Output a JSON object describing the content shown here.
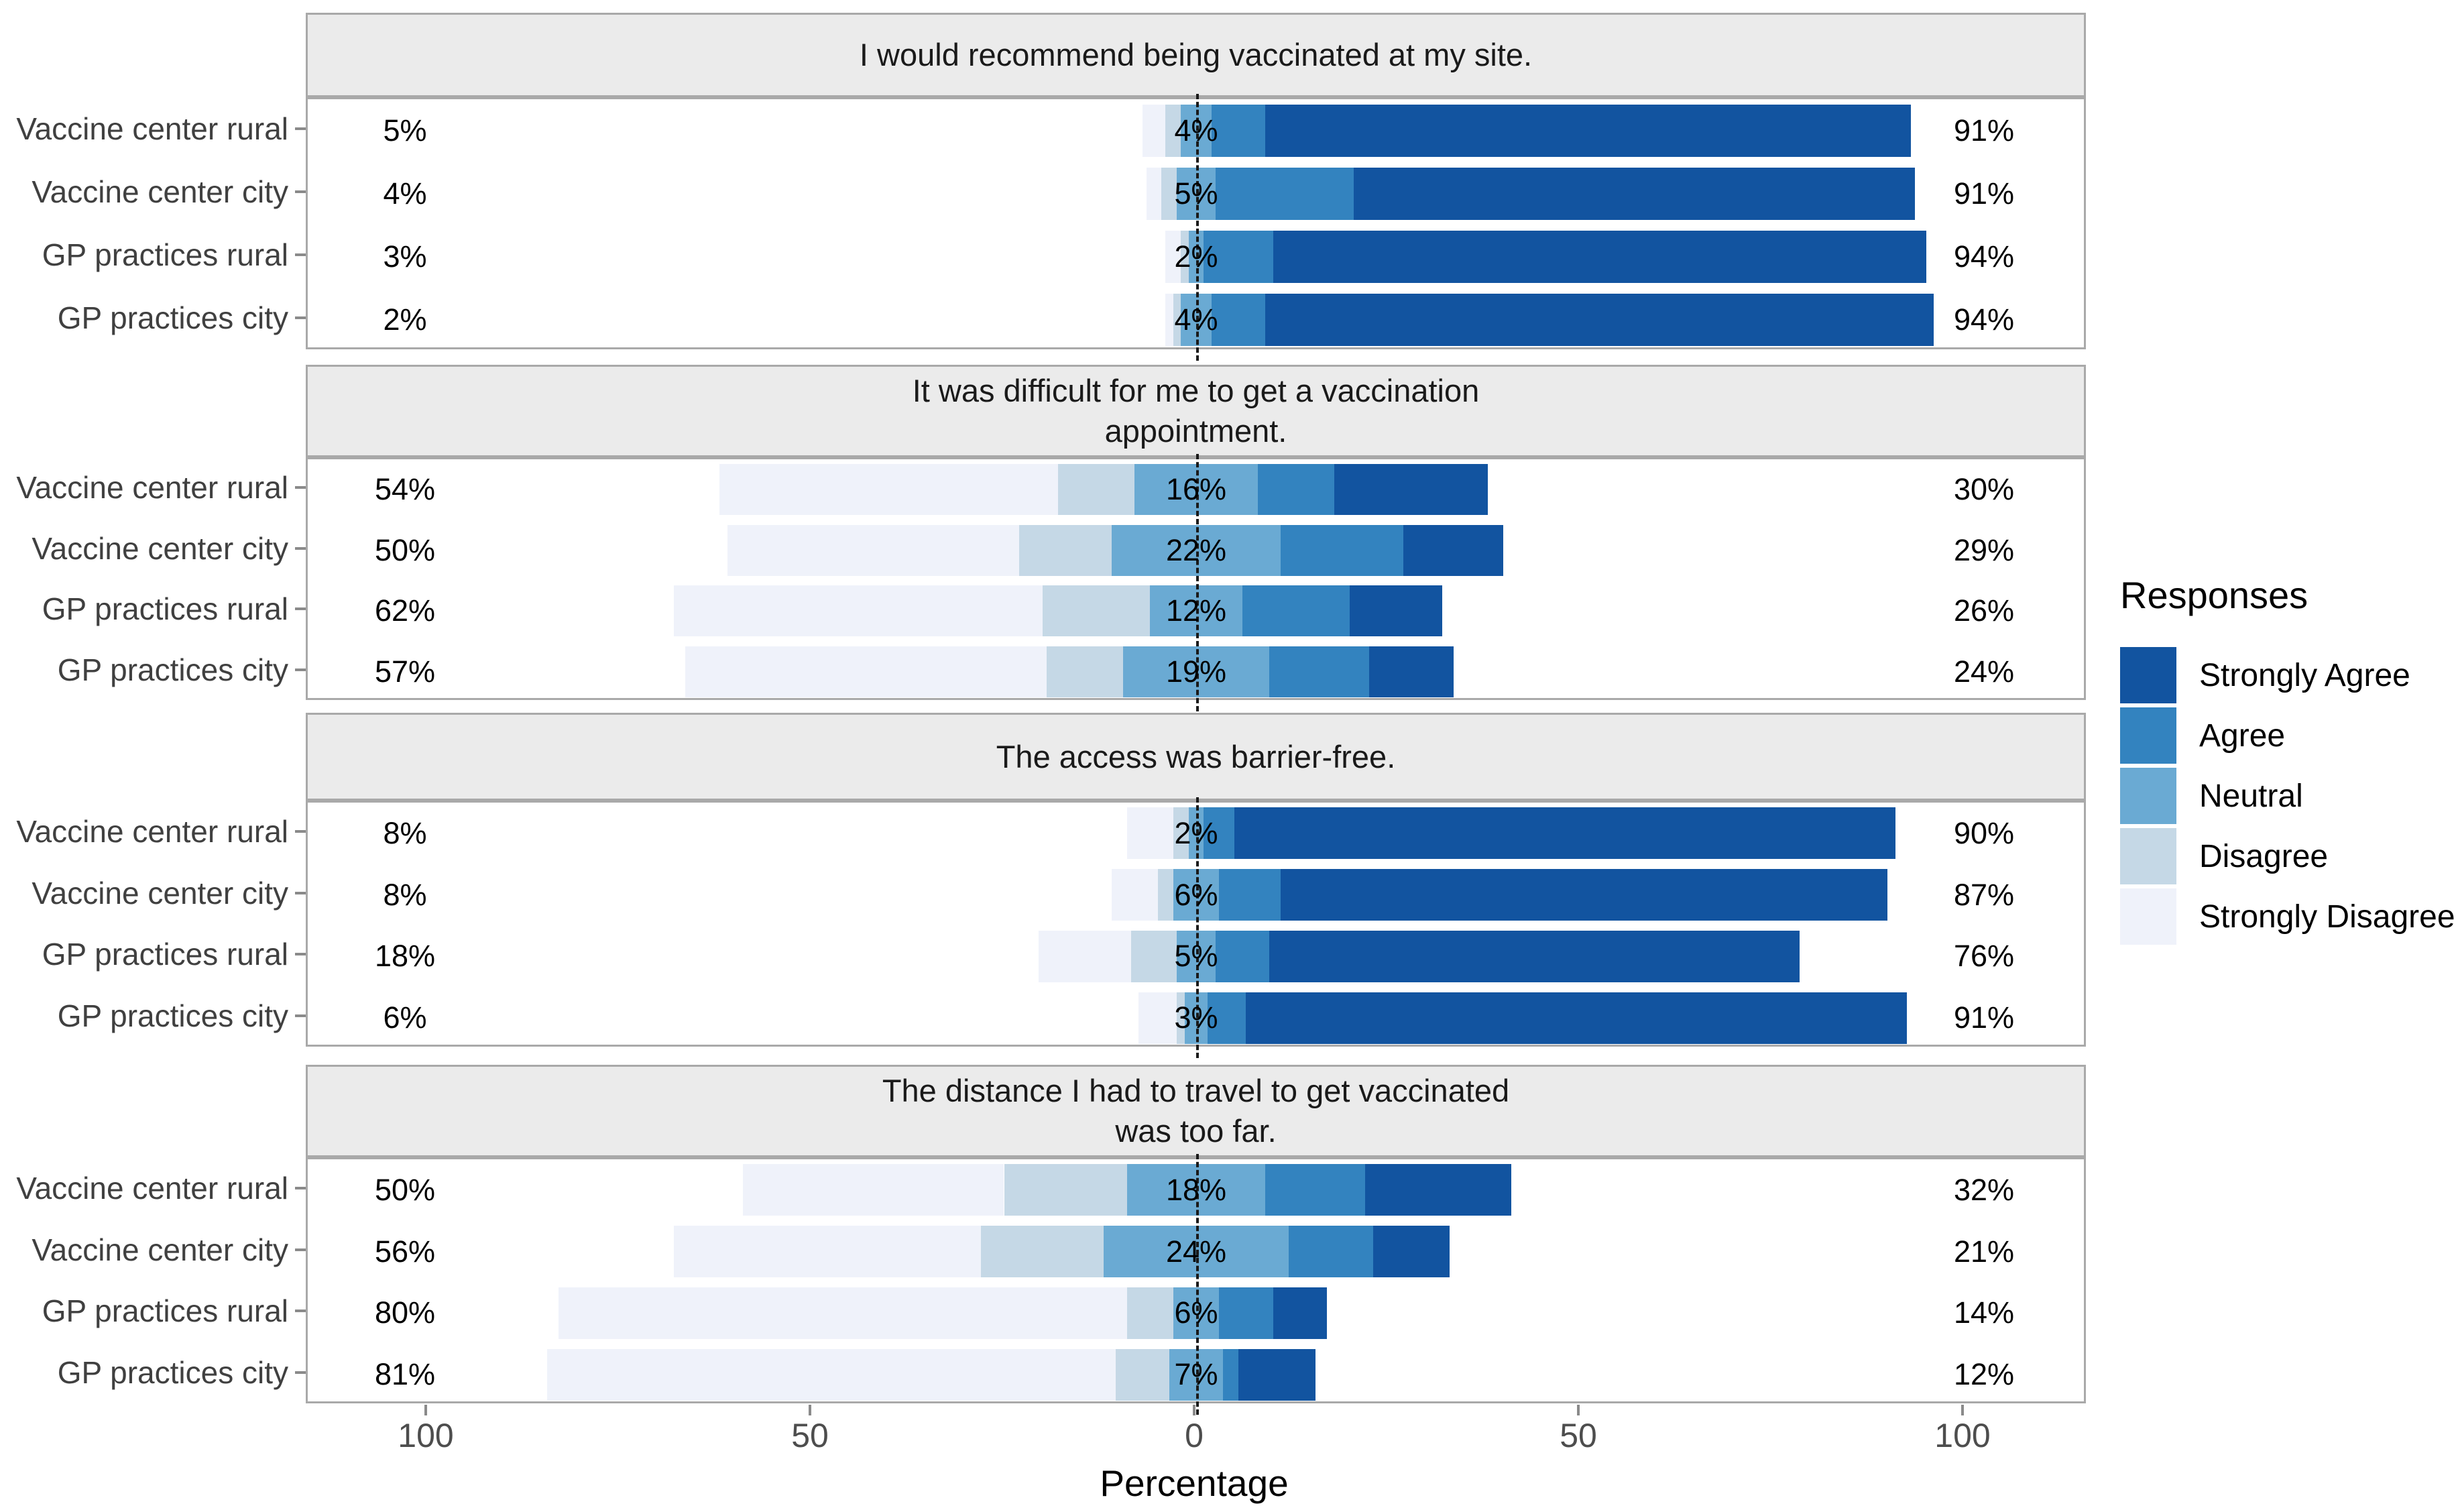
{
  "chart_data": {
    "type": "bar",
    "subtype": "diverging-stacked-likert",
    "axis": {
      "label": "Percentage",
      "ticks": [
        -100,
        -50,
        0,
        50,
        100
      ],
      "tick_labels": [
        "100",
        "50",
        "0",
        "50",
        "100"
      ],
      "domain": [
        -116,
        116
      ]
    },
    "legend": {
      "title": "Responses",
      "items": [
        {
          "key": "strongly_agree",
          "label": "Strongly Agree",
          "color": "#1254a0"
        },
        {
          "key": "agree",
          "label": "Agree",
          "color": "#3383bf"
        },
        {
          "key": "neutral",
          "label": "Neutral",
          "color": "#6aaad3"
        },
        {
          "key": "disagree",
          "label": "Disagree",
          "color": "#c5d8e6"
        },
        {
          "key": "strongly_disagree",
          "label": "Strongly Disagree",
          "color": "#eff2fa"
        }
      ]
    },
    "stack_order": [
      "strongly_disagree",
      "disagree",
      "neutral",
      "agree",
      "strongly_agree"
    ],
    "panels": [
      {
        "title_lines": [
          "I would recommend being vaccinated at my site."
        ],
        "rows": [
          {
            "category": "Vaccine center rural",
            "left_label": "5%",
            "neutral_label": "4%",
            "right_label": "91%",
            "segments": {
              "strongly_disagree": 3,
              "disagree": 2,
              "neutral": 4,
              "agree": 7,
              "strongly_agree": 84
            }
          },
          {
            "category": "Vaccine center city",
            "left_label": "4%",
            "neutral_label": "5%",
            "right_label": "91%",
            "segments": {
              "strongly_disagree": 2,
              "disagree": 2,
              "neutral": 5,
              "agree": 18,
              "strongly_agree": 73
            }
          },
          {
            "category": "GP practices rural",
            "left_label": "3%",
            "neutral_label": "2%",
            "right_label": "94%",
            "segments": {
              "strongly_disagree": 2,
              "disagree": 1,
              "neutral": 2,
              "agree": 9,
              "strongly_agree": 85
            }
          },
          {
            "category": "GP practices city",
            "left_label": "2%",
            "neutral_label": "4%",
            "right_label": "94%",
            "segments": {
              "strongly_disagree": 1,
              "disagree": 1,
              "neutral": 4,
              "agree": 7,
              "strongly_agree": 87
            }
          }
        ]
      },
      {
        "title_lines": [
          "It was difficult for me to get a vaccination",
          "appointment."
        ],
        "rows": [
          {
            "category": "Vaccine center rural",
            "left_label": "54%",
            "neutral_label": "16%",
            "right_label": "30%",
            "segments": {
              "strongly_disagree": 44,
              "disagree": 10,
              "neutral": 16,
              "agree": 10,
              "strongly_agree": 20
            }
          },
          {
            "category": "Vaccine center city",
            "left_label": "50%",
            "neutral_label": "22%",
            "right_label": "29%",
            "segments": {
              "strongly_disagree": 38,
              "disagree": 12,
              "neutral": 22,
              "agree": 16,
              "strongly_agree": 13
            }
          },
          {
            "category": "GP practices rural",
            "left_label": "62%",
            "neutral_label": "12%",
            "right_label": "26%",
            "segments": {
              "strongly_disagree": 48,
              "disagree": 14,
              "neutral": 12,
              "agree": 14,
              "strongly_agree": 12
            }
          },
          {
            "category": "GP practices city",
            "left_label": "57%",
            "neutral_label": "19%",
            "right_label": "24%",
            "segments": {
              "strongly_disagree": 47,
              "disagree": 10,
              "neutral": 19,
              "agree": 13,
              "strongly_agree": 11
            }
          }
        ]
      },
      {
        "title_lines": [
          "The access was barrier-free."
        ],
        "rows": [
          {
            "category": "Vaccine center rural",
            "left_label": "8%",
            "neutral_label": "2%",
            "right_label": "90%",
            "segments": {
              "strongly_disagree": 6,
              "disagree": 2,
              "neutral": 2,
              "agree": 4,
              "strongly_agree": 86
            }
          },
          {
            "category": "Vaccine center city",
            "left_label": "8%",
            "neutral_label": "6%",
            "right_label": "87%",
            "segments": {
              "strongly_disagree": 6,
              "disagree": 2,
              "neutral": 6,
              "agree": 8,
              "strongly_agree": 79
            }
          },
          {
            "category": "GP practices rural",
            "left_label": "18%",
            "neutral_label": "5%",
            "right_label": "76%",
            "segments": {
              "strongly_disagree": 12,
              "disagree": 6,
              "neutral": 5,
              "agree": 7,
              "strongly_agree": 69
            }
          },
          {
            "category": "GP practices city",
            "left_label": "6%",
            "neutral_label": "3%",
            "right_label": "91%",
            "segments": {
              "strongly_disagree": 5,
              "disagree": 1,
              "neutral": 3,
              "agree": 5,
              "strongly_agree": 86
            }
          }
        ]
      },
      {
        "title_lines": [
          "The distance I had to travel to get vaccinated",
          "was too far."
        ],
        "rows": [
          {
            "category": "Vaccine center rural",
            "left_label": "50%",
            "neutral_label": "18%",
            "right_label": "32%",
            "segments": {
              "strongly_disagree": 34,
              "disagree": 16,
              "neutral": 18,
              "agree": 13,
              "strongly_agree": 19
            }
          },
          {
            "category": "Vaccine center city",
            "left_label": "56%",
            "neutral_label": "24%",
            "right_label": "21%",
            "segments": {
              "strongly_disagree": 40,
              "disagree": 16,
              "neutral": 24,
              "agree": 11,
              "strongly_agree": 10
            }
          },
          {
            "category": "GP practices rural",
            "left_label": "80%",
            "neutral_label": "6%",
            "right_label": "14%",
            "segments": {
              "strongly_disagree": 74,
              "disagree": 6,
              "neutral": 6,
              "agree": 7,
              "strongly_agree": 7
            }
          },
          {
            "category": "GP practices city",
            "left_label": "81%",
            "neutral_label": "7%",
            "right_label": "12%",
            "segments": {
              "strongly_disagree": 74,
              "disagree": 7,
              "neutral": 7,
              "agree": 2,
              "strongly_agree": 10
            }
          }
        ]
      }
    ]
  }
}
